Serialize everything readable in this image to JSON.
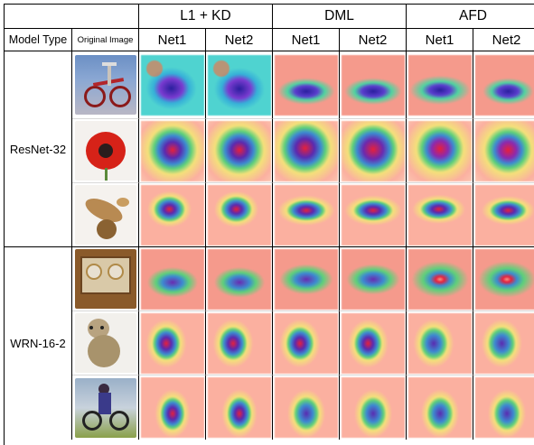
{
  "header": {
    "groups": [
      "L1 + KD",
      "DML",
      "AFD"
    ],
    "model_type_label": "Model Type",
    "original_image_label": "Original Image",
    "net_labels": [
      "Net1",
      "Net2",
      "Net1",
      "Net2",
      "Net1",
      "Net2"
    ]
  },
  "model_groups": [
    {
      "name": "ResNet-32",
      "rows": [
        "bicycle",
        "poppy",
        "crab"
      ]
    },
    {
      "name": "WRN-16-2",
      "rows": [
        "tray",
        "cub",
        "cyclist"
      ]
    }
  ],
  "images": {
    "bicycle": "bicycle-icon",
    "poppy": "flower-icon",
    "crab": "crab-icon",
    "tray": "tray-icon",
    "cub": "leopard-cub-icon",
    "cyclist": "cyclist-icon"
  }
}
